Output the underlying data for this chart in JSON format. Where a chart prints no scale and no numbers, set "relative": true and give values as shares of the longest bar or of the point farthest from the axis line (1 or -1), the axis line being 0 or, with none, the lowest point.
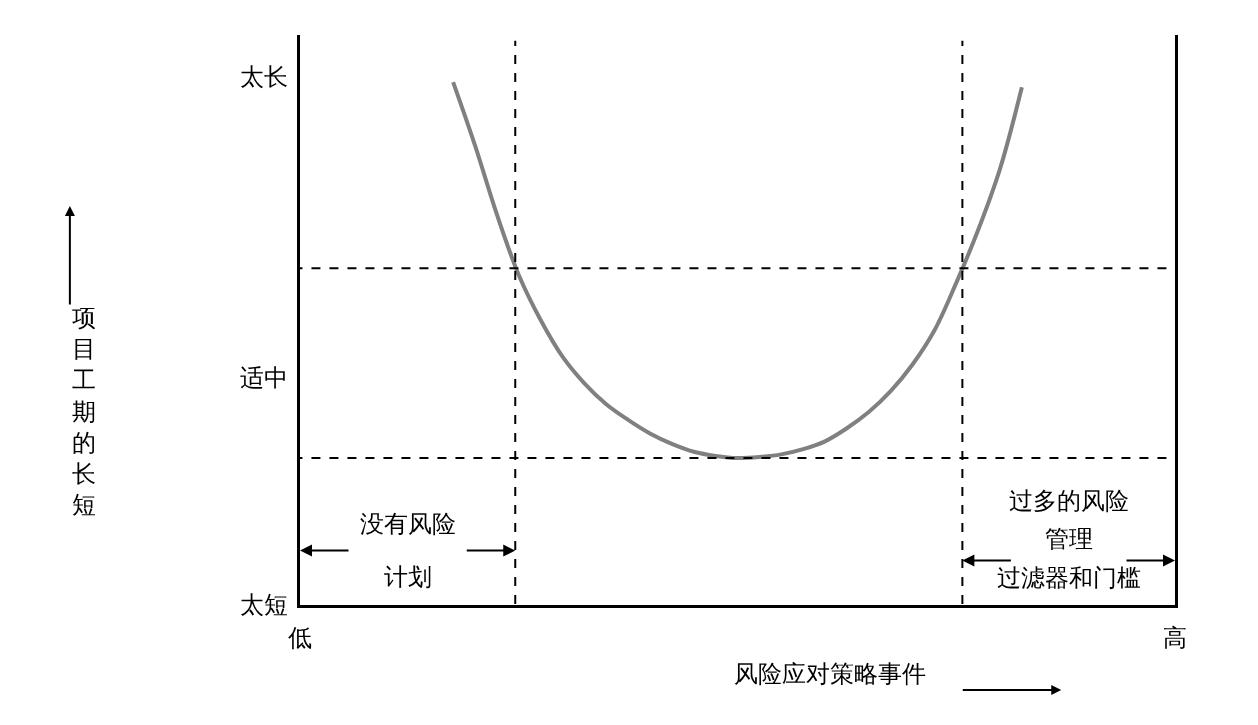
{
  "chart_data": {
    "type": "line",
    "relative": true,
    "xlabel": "风险应对策略事件",
    "categories": [
      null,
      null,
      null,
      null,
      null,
      null,
      null,
      null,
      null,
      null,
      null,
      null,
      null,
      null,
      null,
      null,
      null,
      null,
      null,
      null,
      null,
      null,
      null,
      null,
      null,
      null,
      null,
      null,
      null,
      null,
      null,
      null,
      null,
      null,
      null,
      null,
      null,
      null,
      null,
      null,
      null
    ],
    "series": [
      {
        "color": "#808080",
        "values": [
          null,
          null,
          null,
          null,
          null,
          null,
          null,
          1.0,
          0.879,
          0.747,
          0.631,
          0.545,
          0.475,
          0.424,
          0.384,
          0.354,
          0.328,
          0.308,
          0.293,
          0.285,
          0.281,
          0.283,
          0.288,
          0.298,
          0.313,
          0.338,
          0.369,
          0.409,
          0.46,
          0.525,
          0.616,
          0.717,
          0.834,
          0.99,
          null,
          null,
          null,
          null,
          null,
          null,
          null
        ]
      }
    ],
    "ref_lines": [
      {
        "axis": "y",
        "value": 0.644,
        "color": "#000000",
        "line_style": "dashed"
      },
      {
        "axis": "y",
        "value": 0.281,
        "color": "#000000",
        "line_style": "dashed"
      }
    ],
    "annotations": [
      "太长",
      "适中",
      "太短",
      "低",
      "高",
      "没有风险",
      "计划",
      "过多的风险",
      "管理",
      "过滤器和门槛",
      "项目工期的长短"
    ],
    "line_style": "solid",
    "marker": "none"
  }
}
